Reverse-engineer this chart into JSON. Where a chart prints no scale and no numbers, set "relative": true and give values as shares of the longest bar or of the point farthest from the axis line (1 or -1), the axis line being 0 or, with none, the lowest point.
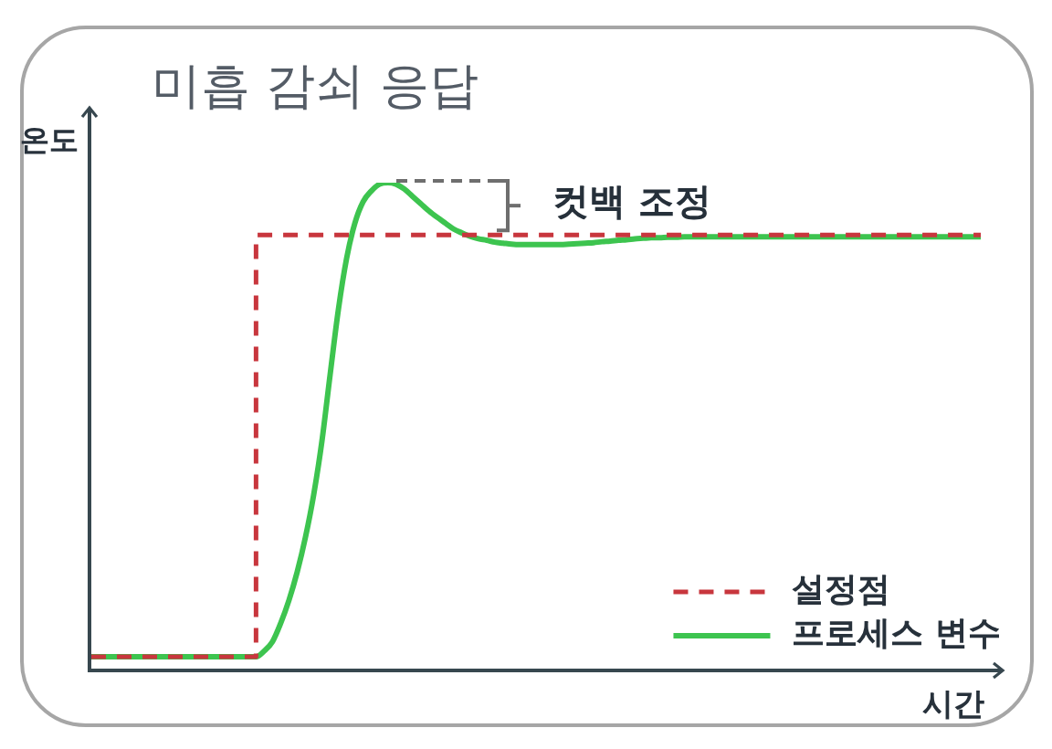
{
  "chart_data": {
    "type": "line",
    "title": "미흡 감쇠 응답",
    "xlabel": "시간",
    "ylabel": "온도",
    "annotations": [
      "컷백 조정"
    ],
    "relative": true,
    "legend": "bottom right",
    "marker": "none",
    "categories": [
      null,
      null,
      null,
      null,
      null,
      null,
      null,
      null,
      null,
      null,
      null,
      null,
      null,
      null,
      null,
      null,
      null,
      null,
      null,
      null,
      null,
      null,
      null,
      null,
      null,
      null,
      null,
      null,
      null,
      null,
      null,
      null,
      null,
      null,
      null,
      null,
      null,
      null,
      null,
      null,
      null,
      null,
      null,
      null,
      null,
      null,
      null,
      null,
      null,
      null,
      null,
      null,
      null,
      null,
      null,
      null,
      null,
      null,
      null,
      null,
      null,
      null,
      null,
      null,
      null,
      null,
      null,
      null,
      null,
      null,
      null,
      null,
      null,
      null,
      null,
      null,
      null,
      null,
      null,
      null,
      null,
      null,
      null,
      null,
      null,
      null,
      null,
      null,
      null,
      null,
      null,
      null,
      null,
      null,
      null,
      null,
      null,
      null,
      null,
      null,
      null,
      null,
      null,
      null,
      null,
      null,
      null,
      null,
      null
    ],
    "series": [
      {
        "name": "설정점",
        "type": "step",
        "color": "#c8363d",
        "line_style": "dashed",
        "values": [
          0.028,
          0.028,
          0.028,
          0.028,
          0.028,
          0.028,
          0.028,
          0.028,
          0.028,
          0.028,
          0.028,
          0.028,
          0.028,
          0.028,
          0.028,
          0.028,
          0.028,
          0.028,
          0.028,
          0.028,
          0.893,
          0.893,
          0.893,
          0.893,
          0.893,
          0.893,
          0.893,
          0.893,
          0.893,
          0.893,
          0.893,
          0.893,
          0.893,
          0.893,
          0.893,
          0.893,
          0.893,
          0.893,
          0.893,
          0.893,
          0.893,
          0.893,
          0.893,
          0.893,
          0.893,
          0.893,
          0.893,
          0.893,
          0.893,
          0.893,
          0.893,
          0.893,
          0.893,
          0.893,
          0.893,
          0.893,
          0.893,
          0.893,
          0.893,
          0.893,
          0.893,
          0.893,
          0.893,
          0.893,
          0.893,
          0.893,
          0.893,
          0.893,
          0.893,
          0.893,
          0.893,
          0.893,
          0.893,
          0.893,
          0.893,
          0.893,
          0.893,
          0.893,
          0.893,
          0.893,
          0.893,
          0.893,
          0.893,
          0.893,
          0.893,
          0.893,
          0.893,
          0.893,
          0.893,
          0.893,
          0.893,
          0.893,
          0.893,
          0.893,
          0.893,
          0.893,
          0.893,
          0.893,
          0.893,
          0.893,
          0.893,
          0.893,
          0.893,
          0.893,
          0.893,
          0.893,
          0.893,
          0.893,
          0.893
        ]
      },
      {
        "name": "프로세스 변수",
        "type": "line",
        "color": "#3dc44f",
        "line_style": "solid",
        "values": [
          0.028,
          0.028,
          0.028,
          0.028,
          0.028,
          0.028,
          0.028,
          0.028,
          0.028,
          0.028,
          0.028,
          0.028,
          0.028,
          0.028,
          0.028,
          0.028,
          0.028,
          0.028,
          0.028,
          0.028,
          0.028,
          0.04,
          0.059,
          0.097,
          0.144,
          0.202,
          0.273,
          0.36,
          0.47,
          0.607,
          0.74,
          0.845,
          0.917,
          0.961,
          0.983,
          0.997,
          1,
          0.997,
          0.987,
          0.972,
          0.957,
          0.942,
          0.929,
          0.917,
          0.905,
          0.897,
          0.89,
          0.885,
          0.882,
          0.878,
          0.876,
          0.874,
          0.873,
          0.873,
          0.873,
          0.873,
          0.873,
          0.873,
          0.874,
          0.875,
          0.876,
          0.877,
          0.879,
          0.88,
          0.882,
          0.883,
          0.885,
          0.886,
          0.887,
          0.887,
          0.888,
          0.888,
          0.889,
          0.889,
          0.889,
          0.889,
          0.889,
          0.889,
          0.889,
          0.889,
          0.889,
          0.889,
          0.889,
          0.889,
          0.889,
          0.889,
          0.889,
          0.889,
          0.889,
          0.889,
          0.889,
          0.889,
          0.889,
          0.889,
          0.889,
          0.889,
          0.889,
          0.889,
          0.889,
          0.889,
          0.889,
          0.889,
          0.889,
          0.889,
          0.889,
          0.889,
          0.889,
          0.889,
          0.889
        ]
      }
    ]
  }
}
